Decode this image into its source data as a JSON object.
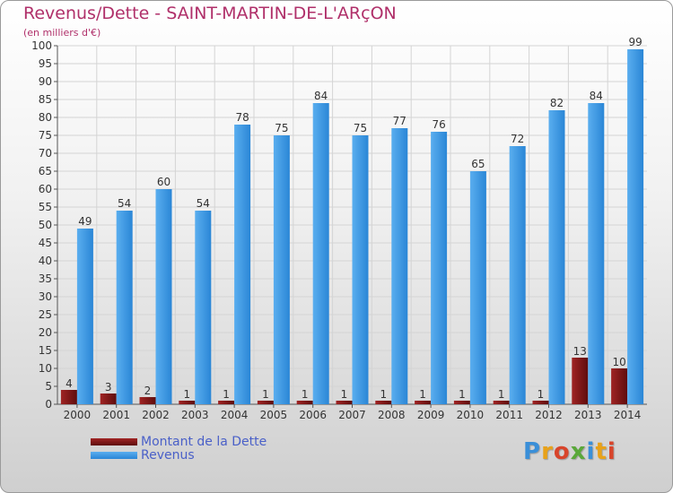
{
  "title": "Revenus/Dette - SAINT-MARTIN-DE-L'ARçON",
  "subtitle": "(en milliers d'€)",
  "logo": "Proxiti",
  "colors": {
    "debt": "#6b0e0e",
    "debt_light": "#a02424",
    "revenue": "#2f8fe0",
    "revenue_light": "#5aaeef",
    "title": "#b0306a",
    "legend_text": "#4a60c8",
    "grid": "#d4d4d4"
  },
  "chart_data": {
    "type": "bar",
    "categories": [
      "2000",
      "2001",
      "2002",
      "2003",
      "2004",
      "2005",
      "2006",
      "2007",
      "2008",
      "2009",
      "2010",
      "2011",
      "2012",
      "2013",
      "2014"
    ],
    "series": [
      {
        "name": "Montant de la Dette",
        "values": [
          4,
          3,
          2,
          1,
          1,
          1,
          1,
          1,
          1,
          1,
          1,
          1,
          1,
          13,
          10
        ]
      },
      {
        "name": "Revenus",
        "values": [
          49,
          54,
          60,
          54,
          78,
          75,
          84,
          75,
          77,
          76,
          65,
          72,
          82,
          84,
          99
        ]
      }
    ],
    "ylim": [
      0,
      100
    ],
    "ytick_step": 5,
    "grid": true,
    "legend_position": "bottom-left"
  }
}
